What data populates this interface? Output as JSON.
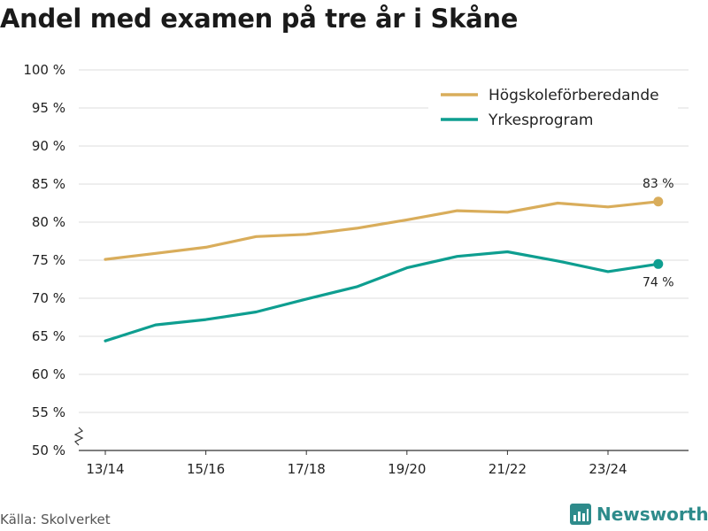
{
  "title": "Andel med examen på tre år i Skåne",
  "source": "Källa: Skolverket",
  "brand": "Newsworthy",
  "chart_data": {
    "type": "line",
    "title": "Andel med examen på tre år i Skåne",
    "xlabel": "",
    "ylabel": "",
    "x": [
      "13/14",
      "14/15",
      "15/16",
      "16/17",
      "17/18",
      "18/19",
      "19/20",
      "20/21",
      "21/22",
      "22/23",
      "23/24",
      "24/25"
    ],
    "xticks": [
      "13/14",
      "15/16",
      "17/18",
      "19/20",
      "21/22",
      "23/24"
    ],
    "yticks": [
      "50 %",
      "55 %",
      "60 %",
      "65 %",
      "70 %",
      "75 %",
      "80 %",
      "85 %",
      "90 %",
      "95 %",
      "100 %"
    ],
    "ylim": [
      50,
      100
    ],
    "series": [
      {
        "name": "Högskoleförberedande",
        "color": "#d9ad5b",
        "values": [
          75.1,
          75.9,
          76.7,
          78.1,
          78.4,
          79.2,
          80.3,
          81.5,
          81.3,
          82.5,
          82.0,
          82.7
        ],
        "end_label": "83 %"
      },
      {
        "name": "Yrkesprogram",
        "color": "#0e9e90",
        "values": [
          64.4,
          66.5,
          67.2,
          68.2,
          69.9,
          71.5,
          74.0,
          75.5,
          76.1,
          74.9,
          73.5,
          74.5
        ],
        "end_label": "74 %"
      }
    ],
    "legend_position": "top-right",
    "grid": true
  }
}
